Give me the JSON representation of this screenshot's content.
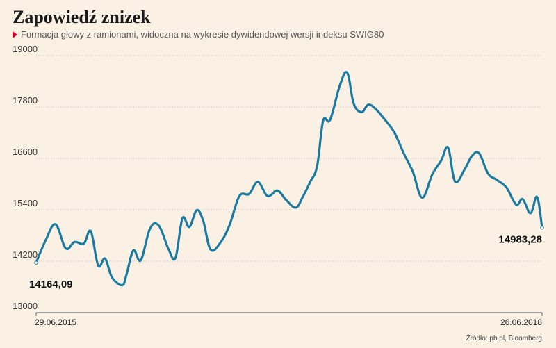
{
  "header": {
    "title": "Zapowiedź znizek",
    "subtitle": "Formacja głowy z ramionami, widoczna na wykresie dywidendowej wersji indeksu SWIG80"
  },
  "source": "Źródło: pb.pl, Bloomberg",
  "colors": {
    "background": "#fbf0e4",
    "line": "#1a7aa0",
    "marker": "#d6002b",
    "grid": "#bdbdbd"
  },
  "chart_data": {
    "type": "line",
    "ylim": [
      13000,
      19000
    ],
    "yticks": [
      13000,
      14200,
      15400,
      16600,
      17800,
      19000
    ],
    "ytick_labels": [
      "13000",
      "14200",
      "15400",
      "16600",
      "17800",
      "19000"
    ],
    "xtick_labels": [
      "29.06.2015",
      "26.06.2018"
    ],
    "grid": true,
    "series": [
      {
        "x": [
          "2015-06-29",
          "2015-07-20",
          "2015-08-10",
          "2015-09-01",
          "2015-09-20",
          "2015-10-10",
          "2015-10-25",
          "2015-11-10",
          "2015-11-25",
          "2015-12-10",
          "2016-01-01",
          "2016-01-10",
          "2016-01-25",
          "2016-02-10",
          "2016-03-01",
          "2016-03-20",
          "2016-04-10",
          "2016-04-25",
          "2016-05-10",
          "2016-05-25",
          "2016-06-10",
          "2016-06-24",
          "2016-07-10",
          "2016-08-01",
          "2016-08-20",
          "2016-09-10",
          "2016-10-01",
          "2016-10-20",
          "2016-11-10",
          "2016-12-01",
          "2016-12-20",
          "2017-01-10",
          "2017-01-25",
          "2017-02-10",
          "2017-02-25",
          "2017-03-10",
          "2017-03-25",
          "2017-04-15",
          "2017-05-01",
          "2017-05-15",
          "2017-06-01",
          "2017-06-15",
          "2017-07-01",
          "2017-07-20",
          "2017-08-10",
          "2017-09-01",
          "2017-09-20",
          "2017-10-10",
          "2017-11-01",
          "2017-11-20",
          "2017-12-05",
          "2017-12-20",
          "2018-01-10",
          "2018-01-25",
          "2018-02-10",
          "2018-03-01",
          "2018-03-20",
          "2018-04-10",
          "2018-05-01",
          "2018-05-15",
          "2018-06-01",
          "2018-06-15",
          "2018-06-26"
        ],
        "values": [
          14164.09,
          14700,
          15060,
          14500,
          14650,
          14610,
          14900,
          14100,
          14260,
          13820,
          13640,
          13880,
          14450,
          14220,
          14960,
          15030,
          14480,
          14280,
          15200,
          15000,
          15390,
          15140,
          14470,
          14650,
          15050,
          15720,
          15770,
          16050,
          15720,
          15850,
          15630,
          15450,
          15700,
          16050,
          16420,
          17480,
          17500,
          18300,
          18600,
          17880,
          17680,
          17850,
          17760,
          17520,
          17220,
          16700,
          16280,
          15680,
          16230,
          16550,
          16850,
          16060,
          16350,
          16650,
          16720,
          16250,
          16100,
          15920,
          15520,
          15650,
          15320,
          15700,
          14983.28
        ]
      }
    ],
    "annotations": [
      {
        "text": "14164,09",
        "point": "first"
      },
      {
        "text": "14983,28",
        "point": "last"
      }
    ]
  }
}
